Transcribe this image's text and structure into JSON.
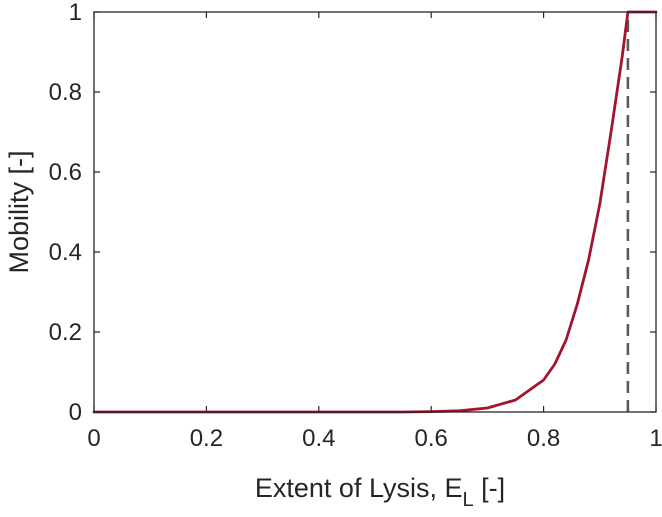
{
  "chart_data": {
    "type": "line",
    "title": "",
    "xlabel_main": "Extent of Lysis, E",
    "xlabel_sub": "L",
    "xlabel_tail": " [-]",
    "ylabel": "Mobility [-]",
    "xlim": [
      0,
      1
    ],
    "ylim": [
      0,
      1
    ],
    "xticks": [
      0,
      0.2,
      0.4,
      0.6,
      0.8,
      1
    ],
    "xtick_labels": [
      "0",
      "0.2",
      "0.4",
      "0.6",
      "0.8",
      "1"
    ],
    "yticks": [
      0,
      0.2,
      0.4,
      0.6,
      0.8,
      1
    ],
    "ytick_labels": [
      "0",
      "0.2",
      "0.4",
      "0.6",
      "0.8",
      "1"
    ],
    "grid": false,
    "series": [
      {
        "color": "#a2142f",
        "x": [
          0,
          0.1,
          0.2,
          0.3,
          0.4,
          0.5,
          0.55,
          0.6,
          0.65,
          0.7,
          0.75,
          0.8,
          0.82,
          0.84,
          0.86,
          0.88,
          0.9,
          0.92,
          0.94,
          0.95,
          1.0
        ],
        "y": [
          0,
          0,
          0,
          0,
          0,
          0,
          0.0,
          0.001,
          0.003,
          0.01,
          0.03,
          0.08,
          0.12,
          0.18,
          0.27,
          0.38,
          0.52,
          0.7,
          0.89,
          1.0,
          1.0
        ]
      }
    ],
    "reference_line": {
      "x": 0.95,
      "style": "dashed",
      "color": "#595959"
    }
  }
}
